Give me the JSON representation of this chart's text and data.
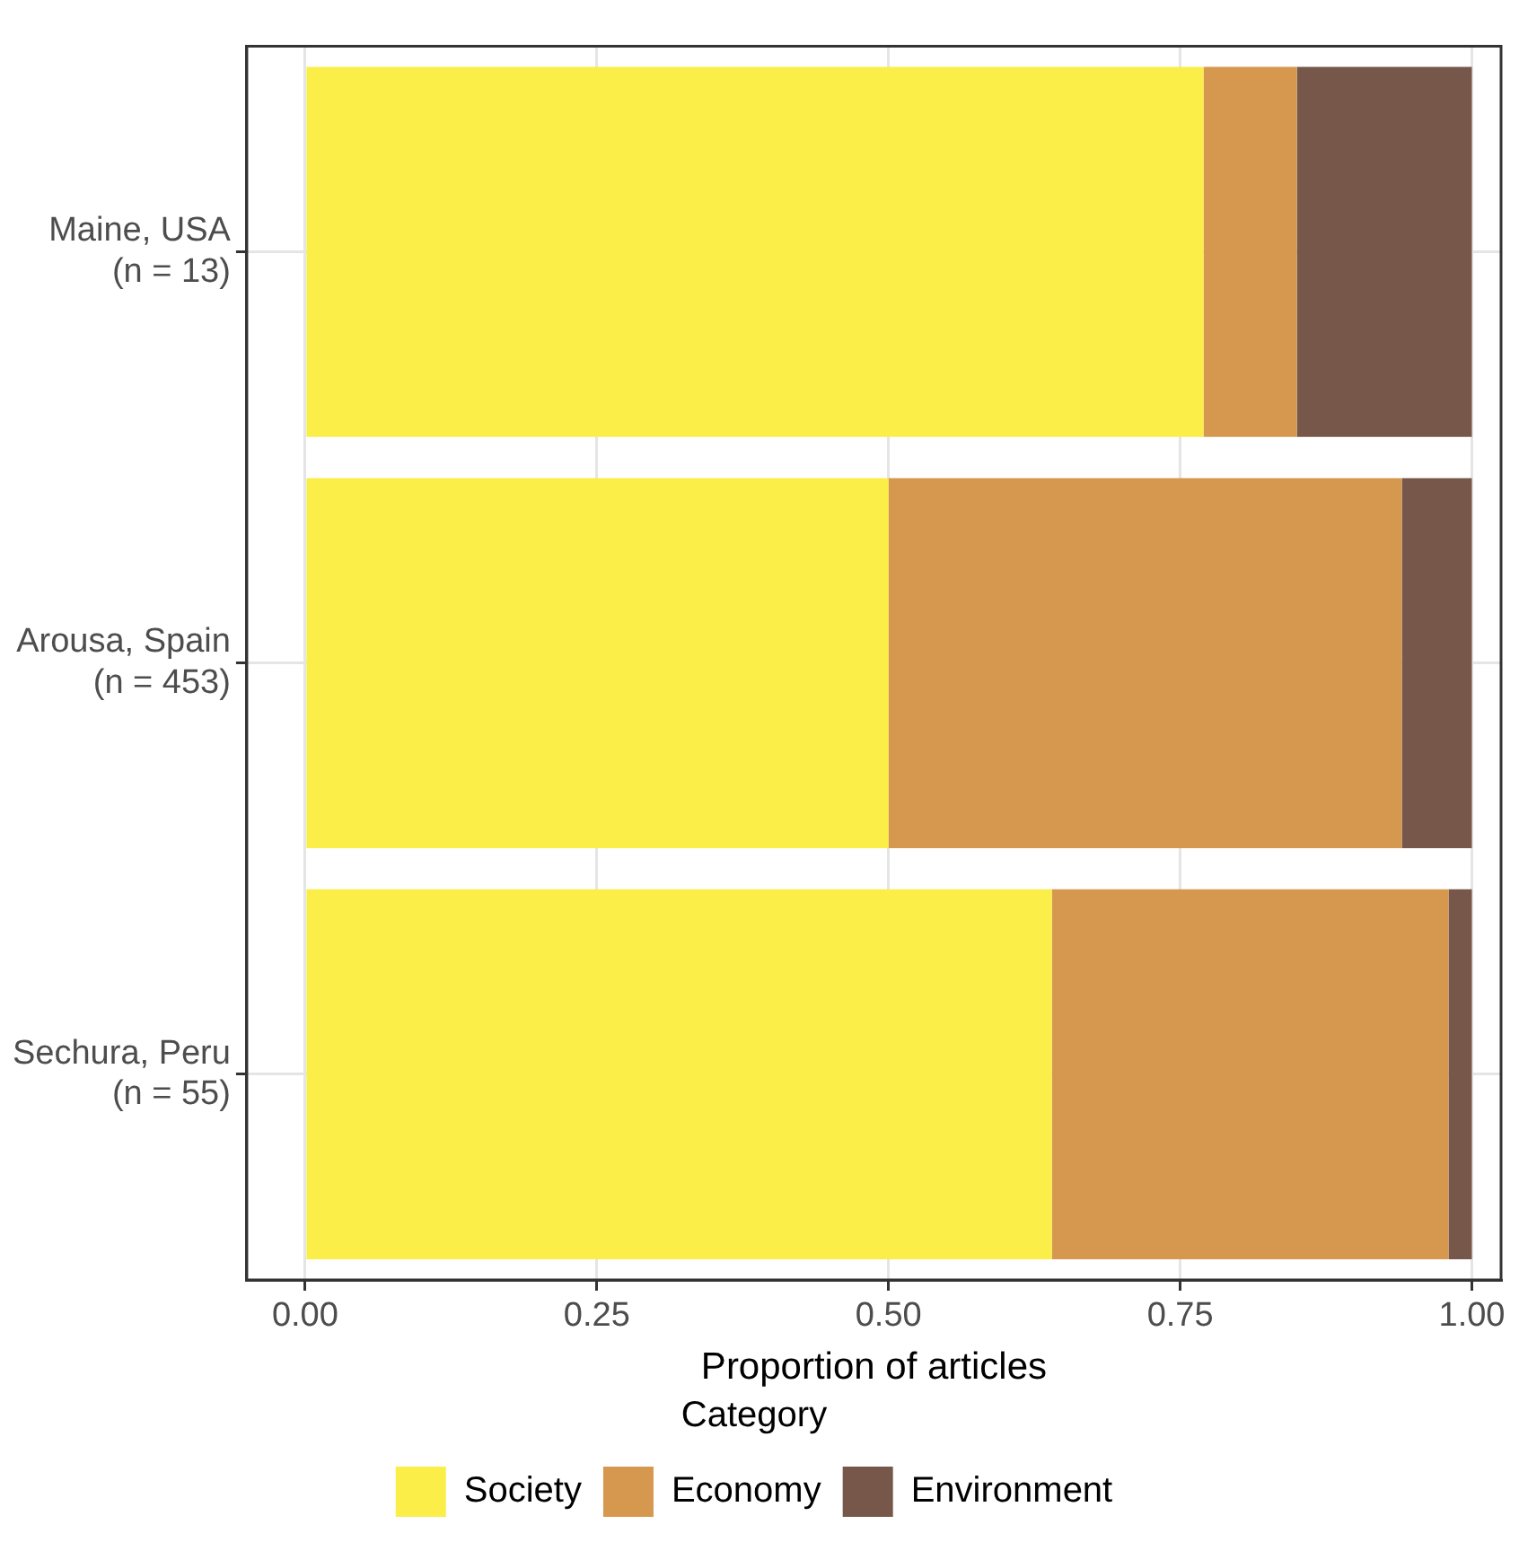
{
  "chart_data": {
    "type": "bar",
    "orientation": "horizontal",
    "stacked": true,
    "xlabel": "Proportion of articles",
    "legend_title": "Category",
    "legend": "bottom",
    "grid": true,
    "categories": [
      "Maine, USA\n(n = 13)",
      "Arousa, Spain\n(n = 453)",
      "Sechura, Peru\n(n = 55)"
    ],
    "series": [
      {
        "name": "Society",
        "color": "#fbee48",
        "values": [
          0.77,
          0.5,
          0.64
        ]
      },
      {
        "name": "Economy",
        "color": "#d6984f",
        "values": [
          0.08,
          0.44,
          0.34
        ]
      },
      {
        "name": "Environment",
        "color": "#78574b",
        "values": [
          0.15,
          0.06,
          0.02
        ]
      }
    ],
    "xlim": [
      -0.05,
      1.025
    ],
    "xticks": [
      {
        "value": 0,
        "label": "0.00"
      },
      {
        "value": 0.25,
        "label": "0.25"
      },
      {
        "value": 0.5,
        "label": "0.50"
      },
      {
        "value": 0.75,
        "label": "0.75"
      },
      {
        "value": 1,
        "label": "1.00"
      }
    ]
  }
}
